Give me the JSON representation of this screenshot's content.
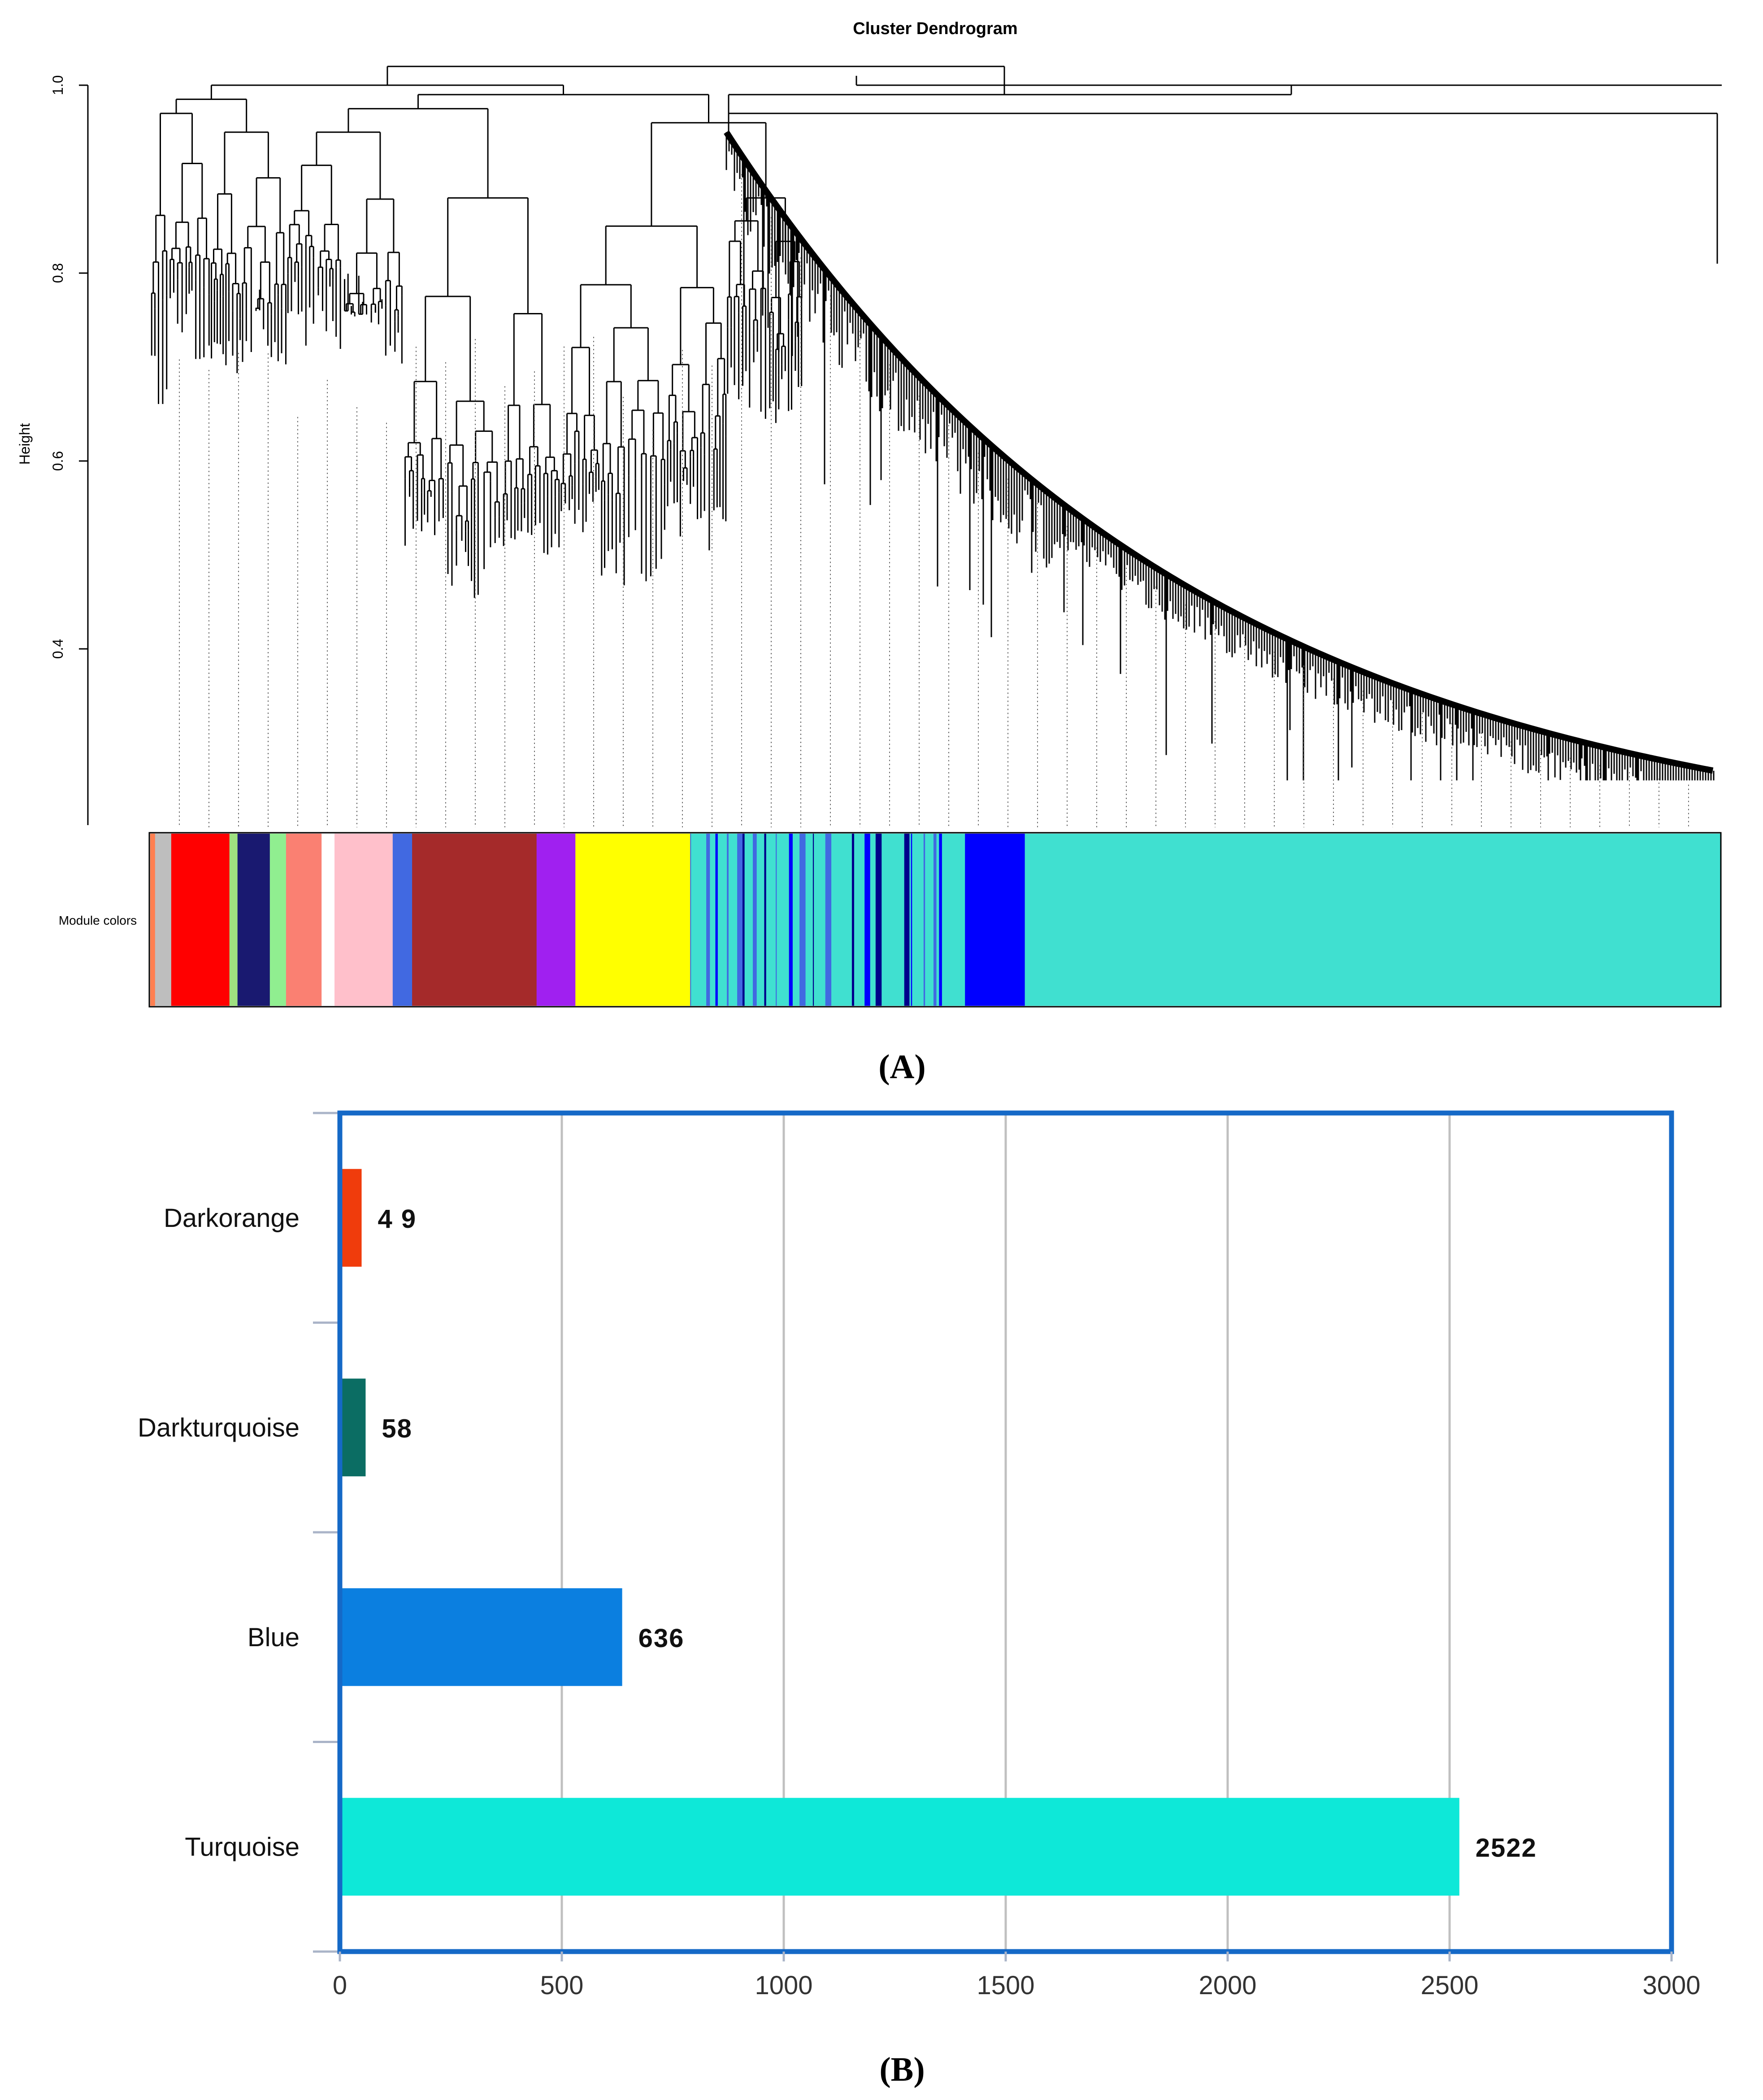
{
  "panel_a": {
    "label": "(A)",
    "chart_data": {
      "type": "dendrogram",
      "title": "Cluster Dendrogram",
      "ylabel": "Height",
      "ylim": [
        0.2,
        1.0
      ],
      "yticks": [
        "0.4",
        "0.6",
        "0.8",
        "1.0"
      ],
      "ytick_values": [
        0.4,
        0.6,
        0.8,
        1.0
      ],
      "color_bar_label": "Module colors",
      "leaf_count": 3932,
      "module_colors": [
        {
          "name": "darkorange",
          "hex": "#ff7f50",
          "fraction": 0.003
        },
        {
          "name": "grey",
          "hex": "#bebebe",
          "fraction": 0.01
        },
        {
          "name": "red",
          "hex": "#ff0000",
          "fraction": 0.036
        },
        {
          "name": "green",
          "hex": "#9fe080",
          "fraction": 0.005
        },
        {
          "name": "midnightblue",
          "hex": "#191970",
          "fraction": 0.02
        },
        {
          "name": "lightgreen",
          "hex": "#90ee90",
          "fraction": 0.01
        },
        {
          "name": "salmon",
          "hex": "#fa8072",
          "fraction": 0.022
        },
        {
          "name": "white",
          "hex": "#ffffff",
          "fraction": 0.008
        },
        {
          "name": "pink",
          "hex": "#ffc0cb",
          "fraction": 0.036
        },
        {
          "name": "royalblue",
          "hex": "#4169e1",
          "fraction": 0.012
        },
        {
          "name": "brown",
          "hex": "#a52a2a",
          "fraction": 0.077
        },
        {
          "name": "purple",
          "hex": "#a020f0",
          "fraction": 0.024
        },
        {
          "name": "yellow",
          "hex": "#ffff00",
          "fraction": 0.071
        },
        {
          "name": "mixed",
          "hex": "#40e0d0",
          "fraction": 0.17
        },
        {
          "name": "blue",
          "hex": "#0000ff",
          "fraction": 0.037
        },
        {
          "name": "turquoise",
          "hex": "#40e0d0",
          "fraction": 0.43
        }
      ]
    }
  },
  "panel_b": {
    "label": "(B)",
    "chart_data": {
      "type": "bar",
      "orientation": "horizontal",
      "categories": [
        "Darkorange",
        "Darkturquoise",
        "Blue",
        "Turquoise"
      ],
      "values": [
        49,
        58,
        636,
        2522
      ],
      "value_labels": [
        "4 9",
        "58",
        "636",
        "2522"
      ],
      "colors": [
        "#f03c0c",
        "#0b6d63",
        "#0b7fe0",
        "#0ee8d8"
      ],
      "xlim": [
        0,
        3000
      ],
      "xticks": [
        "0",
        "500",
        "1000",
        "1500",
        "2000",
        "2500",
        "3000"
      ],
      "xtick_values": [
        0,
        500,
        1000,
        1500,
        2000,
        2500,
        3000
      ],
      "grid": true,
      "frame_color": "#1569c7",
      "grid_color": "#c0c0c0",
      "title": "",
      "xlabel": "",
      "ylabel": ""
    }
  }
}
